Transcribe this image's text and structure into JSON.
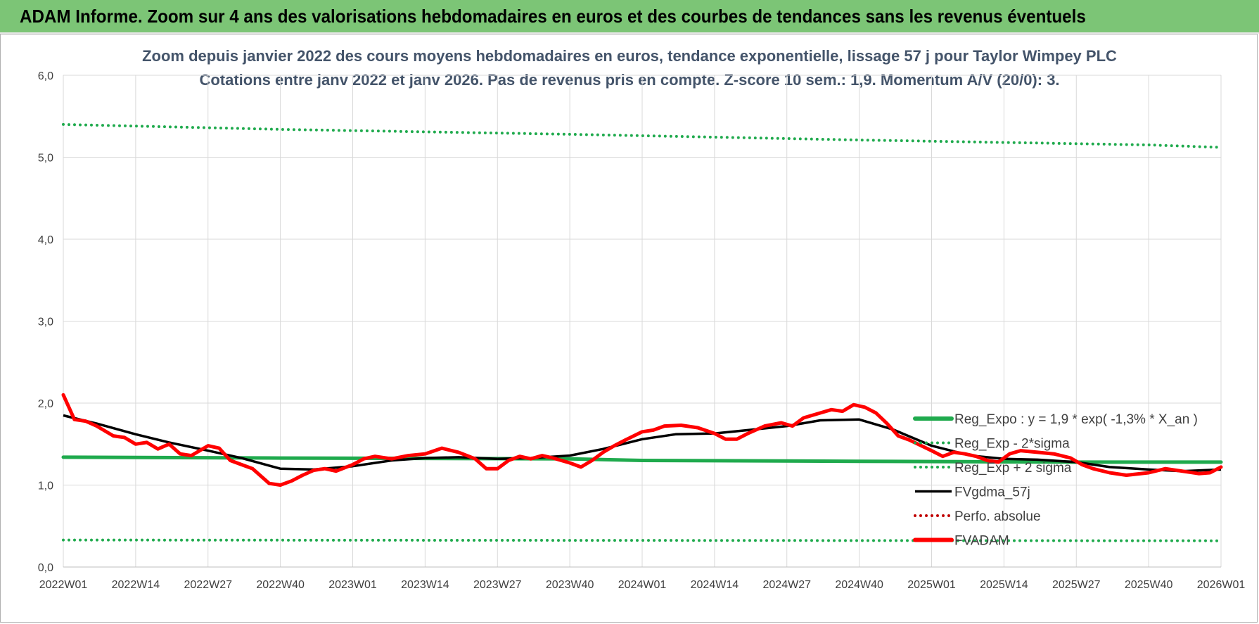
{
  "banner": {
    "title": "ADAM Informe. Zoom sur 4 ans des valorisations hebdomadaires en euros et des courbes de tendances sans les revenus éventuels"
  },
  "colors": {
    "banner_bg": "#7cc576",
    "trend": "#1faa4d",
    "bands": "#1faa4d",
    "smooth": "#000000",
    "price": "#ff0000",
    "perf": "#c00000",
    "title": "#44546a"
  },
  "chart_data": {
    "type": "line",
    "title_line1": "Zoom depuis janvier 2022 des cours moyens hebdomadaires en euros, tendance exponentielle, lissage 57 j pour Taylor Wimpey PLC",
    "title_line2": "Cotations entre janv 2022 et janv 2026. Pas de revenus pris en compte. Z-score 10 sem.: 1,9. Momentum A/V (20/0): 3.",
    "ylim": [
      0,
      6
    ],
    "y_ticks": [
      "0,0",
      "1,0",
      "2,0",
      "3,0",
      "4,0",
      "5,0",
      "6,0"
    ],
    "x_ticks": [
      "2022W01",
      "2022W14",
      "2022W27",
      "2022W40",
      "2023W01",
      "2023W14",
      "2023W27",
      "2023W40",
      "2024W01",
      "2024W14",
      "2024W27",
      "2024W40",
      "2025W01",
      "2025W14",
      "2025W27",
      "2025W40",
      "2026W01"
    ],
    "grid": true,
    "legend_position": "right",
    "legend": [
      {
        "label": "Reg_Expo : y = 1,9 * exp( -1,3% *  X_an )",
        "style": "solid-thick",
        "color": "#1faa4d"
      },
      {
        "label": "Reg_Exp - 2*sigma",
        "style": "dotted",
        "color": "#1faa4d"
      },
      {
        "label": "Reg_Exp + 2 sigma",
        "style": "dotted",
        "color": "#1faa4d"
      },
      {
        "label": "FVgdma_57j",
        "style": "solid",
        "color": "#000000"
      },
      {
        "label": "Perfo. absolue",
        "style": "dotted",
        "color": "#c00000"
      },
      {
        "label": "FVADAM",
        "style": "solid-thick",
        "color": "#ff0000"
      }
    ],
    "series": [
      {
        "name": "Reg_Expo : y = 1,9 * exp( -1,3% *  X_an )",
        "x": [
          "2022W01",
          "2022W40",
          "2023W40",
          "2024W01",
          "2024W40",
          "2025W27",
          "2026W01"
        ],
        "values": [
          1.34,
          1.33,
          1.32,
          1.3,
          1.29,
          1.28,
          1.28
        ]
      },
      {
        "name": "Reg_Exp - 2*sigma",
        "x": [
          "2022W01",
          "2026W01"
        ],
        "values": [
          0.33,
          0.32
        ]
      },
      {
        "name": "Reg_Exp + 2 sigma",
        "x": [
          "2022W01",
          "2022W40",
          "2023W40",
          "2024W40",
          "2025W40",
          "2026W01"
        ],
        "values": [
          5.4,
          5.34,
          5.28,
          5.21,
          5.15,
          5.12
        ]
      },
      {
        "name": "FVgdma_57j",
        "x": [
          "2022W01",
          "2022W07",
          "2022W14",
          "2022W20",
          "2022W27",
          "2022W33",
          "2022W40",
          "2022W46",
          "2023W01",
          "2023W08",
          "2023W14",
          "2023W20",
          "2023W27",
          "2023W33",
          "2023W40",
          "2023W46",
          "2024W01",
          "2024W07",
          "2024W14",
          "2024W20",
          "2024W27",
          "2024W33",
          "2024W40",
          "2024W46",
          "2025W01",
          "2025W08",
          "2025W14",
          "2025W20",
          "2025W27",
          "2025W33",
          "2025W40",
          "2025W46",
          "2026W01"
        ],
        "values": [
          1.85,
          1.75,
          1.62,
          1.52,
          1.42,
          1.33,
          1.2,
          1.19,
          1.23,
          1.3,
          1.33,
          1.34,
          1.32,
          1.33,
          1.36,
          1.44,
          1.56,
          1.62,
          1.63,
          1.67,
          1.72,
          1.79,
          1.8,
          1.68,
          1.48,
          1.36,
          1.32,
          1.31,
          1.28,
          1.22,
          1.19,
          1.17,
          1.19
        ]
      },
      {
        "name": "FVADAM",
        "x": [
          "2022W01",
          "2022W02",
          "2022W03",
          "2022W05",
          "2022W07",
          "2022W10",
          "2022W12",
          "2022W14",
          "2022W16",
          "2022W18",
          "2022W20",
          "2022W22",
          "2022W24",
          "2022W27",
          "2022W29",
          "2022W31",
          "2022W33",
          "2022W35",
          "2022W37",
          "2022W38",
          "2022W40",
          "2022W42",
          "2022W44",
          "2022W46",
          "2022W48",
          "2022W50",
          "2023W01",
          "2023W03",
          "2023W05",
          "2023W08",
          "2023W11",
          "2023W14",
          "2023W17",
          "2023W20",
          "2023W23",
          "2023W25",
          "2023W27",
          "2023W29",
          "2023W31",
          "2023W33",
          "2023W35",
          "2023W37",
          "2023W40",
          "2023W42",
          "2023W44",
          "2023W46",
          "2023W48",
          "2023W50",
          "2024W01",
          "2024W03",
          "2024W05",
          "2024W08",
          "2024W11",
          "2024W14",
          "2024W16",
          "2024W18",
          "2024W20",
          "2024W23",
          "2024W26",
          "2024W28",
          "2024W30",
          "2024W33",
          "2024W35",
          "2024W37",
          "2024W39",
          "2024W41",
          "2024W43",
          "2024W45",
          "2024W47",
          "2024W49",
          "2025W01",
          "2025W03",
          "2025W05",
          "2025W07",
          "2025W09",
          "2025W11",
          "2025W13",
          "2025W15",
          "2025W17",
          "2025W20",
          "2025W23",
          "2025W26",
          "2025W28",
          "2025W30",
          "2025W33",
          "2025W36",
          "2025W40",
          "2025W43",
          "2025W46",
          "2025W49",
          "2025W51",
          "2026W01"
        ],
        "values": [
          2.1,
          1.95,
          1.8,
          1.78,
          1.72,
          1.6,
          1.58,
          1.5,
          1.52,
          1.44,
          1.5,
          1.38,
          1.36,
          1.48,
          1.45,
          1.3,
          1.25,
          1.2,
          1.08,
          1.02,
          1.0,
          1.05,
          1.12,
          1.18,
          1.2,
          1.17,
          1.25,
          1.32,
          1.35,
          1.32,
          1.36,
          1.38,
          1.45,
          1.4,
          1.32,
          1.2,
          1.2,
          1.3,
          1.35,
          1.32,
          1.36,
          1.33,
          1.27,
          1.22,
          1.3,
          1.4,
          1.48,
          1.55,
          1.65,
          1.67,
          1.72,
          1.73,
          1.7,
          1.63,
          1.56,
          1.56,
          1.63,
          1.72,
          1.76,
          1.72,
          1.82,
          1.88,
          1.92,
          1.9,
          1.98,
          1.95,
          1.88,
          1.75,
          1.6,
          1.55,
          1.42,
          1.35,
          1.4,
          1.38,
          1.35,
          1.3,
          1.28,
          1.38,
          1.42,
          1.4,
          1.38,
          1.33,
          1.25,
          1.2,
          1.15,
          1.12,
          1.15,
          1.2,
          1.17,
          1.14,
          1.15,
          1.22
        ]
      }
    ]
  }
}
